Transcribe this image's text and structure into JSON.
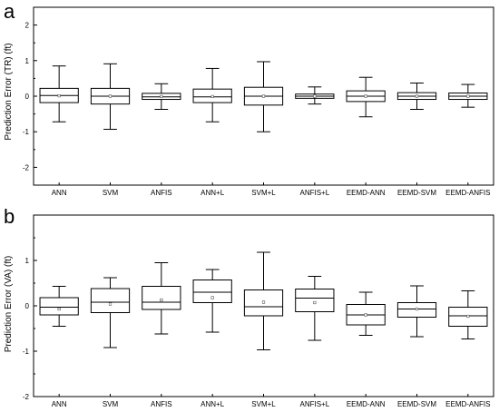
{
  "chart_data": [
    {
      "type": "box",
      "panel_label": "a",
      "title": "",
      "xlabel": "",
      "ylabel": "Prediction Error (TR) (ft)",
      "ylim": [
        -2.5,
        2.5
      ],
      "yticks": [
        "2",
        "1",
        "0",
        "-1",
        "-2"
      ],
      "ytick_values": [
        2,
        1,
        0,
        -1,
        -2
      ],
      "grid": false,
      "categories": [
        "ANN",
        "SVM",
        "ANFIS",
        "ANN+L",
        "SVM+L",
        "ANFIS+L",
        "EEMD-ANN",
        "EEMD-SVM",
        "EEMD-ANFIS"
      ],
      "boxes": [
        {
          "min": -0.72,
          "q1": -0.18,
          "median": 0.02,
          "q3": 0.22,
          "max": 0.85,
          "mean": 0.01
        },
        {
          "min": -0.93,
          "q1": -0.22,
          "median": 0.0,
          "q3": 0.22,
          "max": 0.91,
          "mean": 0.0
        },
        {
          "min": -0.37,
          "q1": -0.09,
          "median": -0.02,
          "q3": 0.08,
          "max": 0.35,
          "mean": -0.01
        },
        {
          "min": -0.72,
          "q1": -0.18,
          "median": -0.02,
          "q3": 0.2,
          "max": 0.78,
          "mean": -0.01
        },
        {
          "min": -1.0,
          "q1": -0.25,
          "median": 0.0,
          "q3": 0.25,
          "max": 0.97,
          "mean": 0.0
        },
        {
          "min": -0.22,
          "q1": -0.06,
          "median": 0.0,
          "q3": 0.06,
          "max": 0.26,
          "mean": 0.0
        },
        {
          "min": -0.58,
          "q1": -0.15,
          "median": 0.0,
          "q3": 0.15,
          "max": 0.53,
          "mean": 0.0
        },
        {
          "min": -0.37,
          "q1": -0.09,
          "median": 0.0,
          "q3": 0.1,
          "max": 0.37,
          "mean": 0.0
        },
        {
          "min": -0.31,
          "q1": -0.09,
          "median": 0.0,
          "q3": 0.09,
          "max": 0.33,
          "mean": 0.0
        }
      ]
    },
    {
      "type": "box",
      "panel_label": "b",
      "title": "",
      "xlabel": "",
      "ylabel": "Prediction Error (VA) (ft)",
      "ylim": [
        -2.0,
        2.0
      ],
      "yticks": [
        "1",
        "0",
        "-1",
        "-2"
      ],
      "ytick_values": [
        1,
        0,
        -1,
        -2
      ],
      "grid": false,
      "categories": [
        "ANN",
        "SVM",
        "ANFIS",
        "ANN+L",
        "SVM+L",
        "ANFIS+L",
        "EEMD-ANN",
        "EEMD-SVM",
        "EEMD-ANFIS"
      ],
      "boxes": [
        {
          "min": -0.45,
          "q1": -0.2,
          "median": -0.03,
          "q3": 0.18,
          "max": 0.43,
          "mean": -0.07
        },
        {
          "min": -0.92,
          "q1": -0.15,
          "median": 0.08,
          "q3": 0.38,
          "max": 0.62,
          "mean": 0.04
        },
        {
          "min": -0.62,
          "q1": -0.08,
          "median": 0.08,
          "q3": 0.43,
          "max": 0.95,
          "mean": 0.13
        },
        {
          "min": -0.58,
          "q1": 0.07,
          "median": 0.3,
          "q3": 0.57,
          "max": 0.8,
          "mean": 0.18
        },
        {
          "min": -0.97,
          "q1": -0.22,
          "median": -0.02,
          "q3": 0.35,
          "max": 1.18,
          "mean": 0.08
        },
        {
          "min": -0.76,
          "q1": -0.13,
          "median": 0.17,
          "q3": 0.37,
          "max": 0.65,
          "mean": 0.07
        },
        {
          "min": -0.65,
          "q1": -0.42,
          "median": -0.2,
          "q3": 0.03,
          "max": 0.3,
          "mean": -0.2
        },
        {
          "min": -0.68,
          "q1": -0.25,
          "median": -0.07,
          "q3": 0.07,
          "max": 0.44,
          "mean": -0.07
        },
        {
          "min": -0.73,
          "q1": -0.45,
          "median": -0.22,
          "q3": -0.03,
          "max": 0.33,
          "mean": -0.23
        }
      ]
    }
  ]
}
